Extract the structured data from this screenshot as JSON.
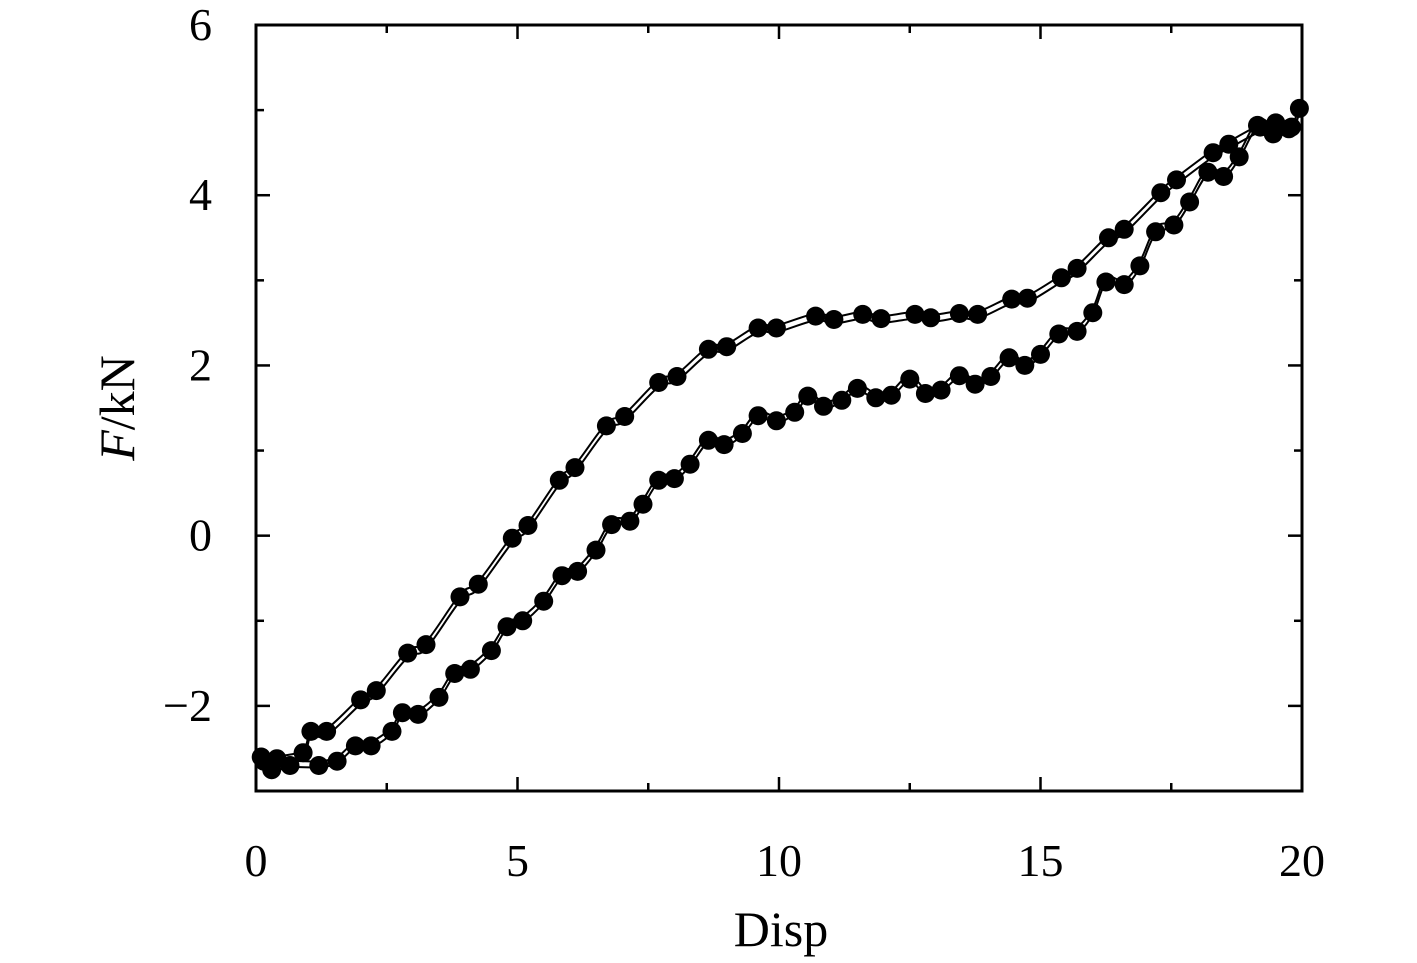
{
  "chart_data": {
    "type": "scatter",
    "xlabel": "Disp",
    "ylabel": "F/kN",
    "ylabel_parts": [
      "F",
      "/kN"
    ],
    "xlim": [
      0,
      20
    ],
    "ylim": [
      -3,
      6
    ],
    "x_ticks": [
      0,
      5,
      10,
      15,
      20
    ],
    "y_ticks": [
      -2,
      0,
      2,
      4,
      6
    ],
    "x_tick_labels": [
      "0",
      "5",
      "10",
      "15",
      "20"
    ],
    "y_tick_labels": [
      "−2",
      "0",
      "2",
      "4",
      "6"
    ],
    "grid": false,
    "legend": false,
    "colors": {
      "markers": "#000000",
      "lines": "#000000",
      "background": "#ffffff"
    },
    "series": [
      {
        "curve": "upper",
        "points": [
          [
            0.1,
            -2.6
          ],
          [
            0.4,
            -2.62
          ],
          [
            0.9,
            -2.55
          ],
          [
            1.05,
            -2.3
          ],
          [
            1.35,
            -2.3
          ],
          [
            2.0,
            -1.93
          ],
          [
            2.3,
            -1.82
          ],
          [
            2.9,
            -1.38
          ],
          [
            3.25,
            -1.28
          ],
          [
            3.9,
            -0.72
          ],
          [
            4.25,
            -0.57
          ],
          [
            4.9,
            -0.03
          ],
          [
            5.2,
            0.12
          ],
          [
            5.8,
            0.65
          ],
          [
            6.1,
            0.8
          ],
          [
            6.7,
            1.29
          ],
          [
            7.05,
            1.4
          ],
          [
            7.7,
            1.8
          ],
          [
            8.05,
            1.87
          ],
          [
            8.65,
            2.19
          ],
          [
            9.0,
            2.22
          ],
          [
            9.6,
            2.44
          ],
          [
            9.95,
            2.44
          ],
          [
            10.7,
            2.58
          ],
          [
            11.05,
            2.54
          ],
          [
            11.6,
            2.6
          ],
          [
            11.95,
            2.55
          ],
          [
            12.6,
            2.6
          ],
          [
            12.9,
            2.56
          ],
          [
            13.45,
            2.61
          ],
          [
            13.8,
            2.6
          ],
          [
            14.45,
            2.78
          ],
          [
            14.75,
            2.79
          ],
          [
            15.4,
            3.03
          ],
          [
            15.7,
            3.14
          ],
          [
            16.3,
            3.5
          ],
          [
            16.6,
            3.6
          ],
          [
            17.3,
            4.03
          ],
          [
            17.6,
            4.18
          ],
          [
            18.3,
            4.5
          ],
          [
            18.6,
            4.6
          ],
          [
            19.2,
            4.8
          ],
          [
            19.5,
            4.85
          ],
          [
            19.8,
            4.8
          ],
          [
            19.95,
            5.02
          ]
        ],
        "line_offsets": [
          0.03,
          -0.05
        ]
      },
      {
        "curve": "lower",
        "points": [
          [
            0.15,
            -2.65
          ],
          [
            0.3,
            -2.75
          ],
          [
            0.65,
            -2.7
          ],
          [
            1.2,
            -2.7
          ],
          [
            1.55,
            -2.65
          ],
          [
            1.9,
            -2.47
          ],
          [
            2.2,
            -2.47
          ],
          [
            2.6,
            -2.3
          ],
          [
            2.8,
            -2.08
          ],
          [
            3.1,
            -2.1
          ],
          [
            3.5,
            -1.9
          ],
          [
            3.8,
            -1.62
          ],
          [
            4.1,
            -1.57
          ],
          [
            4.5,
            -1.35
          ],
          [
            4.8,
            -1.07
          ],
          [
            5.1,
            -1.0
          ],
          [
            5.5,
            -0.77
          ],
          [
            5.85,
            -0.47
          ],
          [
            6.15,
            -0.42
          ],
          [
            6.5,
            -0.17
          ],
          [
            6.8,
            0.13
          ],
          [
            7.15,
            0.17
          ],
          [
            7.4,
            0.37
          ],
          [
            7.7,
            0.65
          ],
          [
            8.0,
            0.67
          ],
          [
            8.3,
            0.84
          ],
          [
            8.65,
            1.12
          ],
          [
            8.95,
            1.07
          ],
          [
            9.3,
            1.2
          ],
          [
            9.6,
            1.41
          ],
          [
            9.95,
            1.35
          ],
          [
            10.3,
            1.45
          ],
          [
            10.55,
            1.64
          ],
          [
            10.85,
            1.52
          ],
          [
            11.2,
            1.59
          ],
          [
            11.5,
            1.73
          ],
          [
            11.85,
            1.62
          ],
          [
            12.15,
            1.65
          ],
          [
            12.5,
            1.84
          ],
          [
            12.8,
            1.67
          ],
          [
            13.1,
            1.71
          ],
          [
            13.45,
            1.88
          ],
          [
            13.75,
            1.78
          ],
          [
            14.05,
            1.87
          ],
          [
            14.4,
            2.09
          ],
          [
            14.7,
            2.0
          ],
          [
            15.0,
            2.13
          ],
          [
            15.35,
            2.37
          ],
          [
            15.7,
            2.4
          ],
          [
            16.0,
            2.62
          ],
          [
            16.25,
            2.98
          ],
          [
            16.6,
            2.95
          ],
          [
            16.9,
            3.17
          ],
          [
            17.2,
            3.57
          ],
          [
            17.55,
            3.65
          ],
          [
            17.85,
            3.92
          ],
          [
            18.2,
            4.27
          ],
          [
            18.5,
            4.22
          ],
          [
            18.8,
            4.45
          ],
          [
            19.15,
            4.82
          ],
          [
            19.45,
            4.72
          ],
          [
            19.75,
            4.78
          ]
        ],
        "line_offsets": [
          0.05,
          -0.02
        ]
      }
    ]
  }
}
